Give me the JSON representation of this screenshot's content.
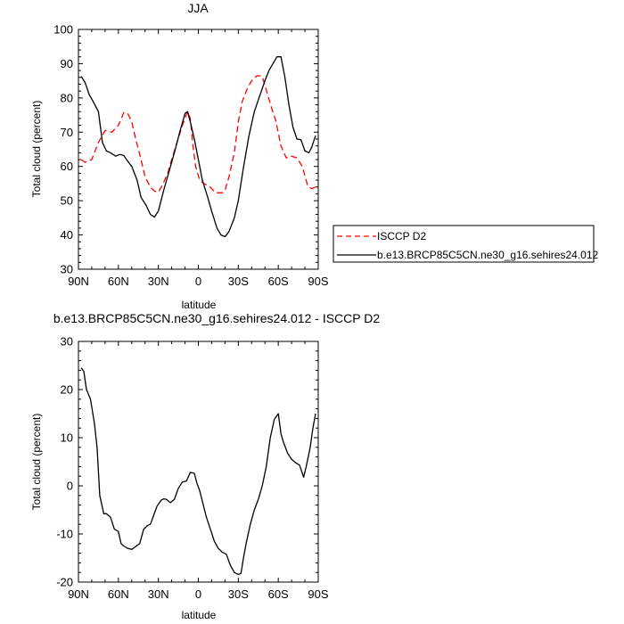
{
  "chart_data": [
    {
      "type": "line",
      "title": "JJA",
      "xlabel": "latitude",
      "ylabel": "Total cloud (percent)",
      "ylim": [
        30,
        100
      ],
      "xlim": [
        -90,
        90
      ],
      "xticks": [
        -90,
        -60,
        -30,
        0,
        30,
        60,
        90
      ],
      "xtick_labels": [
        "90N",
        "60N",
        "30N",
        "0",
        "30S",
        "60S",
        "90S"
      ],
      "yticks": [
        30,
        40,
        50,
        60,
        70,
        80,
        90,
        100
      ],
      "ytick_labels": [
        "30",
        "40",
        "50",
        "60",
        "70",
        "80",
        "90",
        "100"
      ],
      "legend_position": "right",
      "series": [
        {
          "name": "ISCCP D2",
          "color": "#ff0000",
          "dash": true,
          "x": [
            -88,
            -85,
            -80,
            -75,
            -70,
            -65,
            -60,
            -56,
            -53,
            -50,
            -47,
            -43,
            -40,
            -36,
            -33,
            -30,
            -27,
            -23,
            -20,
            -16,
            -12,
            -8,
            -6,
            -4,
            -2,
            1,
            4,
            8,
            13,
            18,
            20,
            23,
            27,
            30,
            33,
            37,
            40,
            44,
            48,
            52,
            55,
            58,
            62,
            66,
            70,
            74,
            78,
            82,
            85,
            88
          ],
          "y": [
            62,
            61.2,
            62,
            67,
            70.5,
            70,
            72,
            75.7,
            75.5,
            73,
            68,
            62,
            57,
            54,
            52.8,
            52.5,
            54.5,
            58,
            62,
            67,
            72,
            76,
            74,
            66,
            60,
            56,
            55,
            54.3,
            52.3,
            52.3,
            53,
            57,
            64,
            73,
            79,
            83,
            85,
            86.5,
            86.3,
            81,
            77,
            73.5,
            66,
            62.5,
            63,
            62.5,
            60,
            54.5,
            53.5,
            54
          ]
        },
        {
          "name": "b.e13.BRCP85C5CN.ne30_g16.sehires24.012",
          "color": "#000000",
          "dash": false,
          "x": [
            -88,
            -85,
            -82,
            -79,
            -75,
            -72,
            -69,
            -66,
            -62,
            -59,
            -56,
            -53,
            -50,
            -46,
            -43,
            -39,
            -36,
            -33,
            -30,
            -26,
            -22,
            -18,
            -14,
            -10,
            -8,
            -6,
            -3,
            0,
            3,
            7,
            10,
            14,
            17,
            20,
            23,
            27,
            30,
            34,
            38,
            42,
            46,
            50,
            53,
            56,
            59,
            62,
            65,
            68,
            71,
            74,
            77,
            80,
            83,
            85,
            88
          ],
          "y": [
            86.3,
            84.5,
            81,
            79,
            76,
            67,
            64.5,
            64,
            63,
            63.5,
            63.2,
            61.5,
            60,
            56,
            51,
            48.5,
            46,
            45.2,
            47,
            53,
            58.5,
            64,
            70,
            75.5,
            76,
            73,
            68,
            62,
            56,
            51,
            47,
            42,
            40,
            39.5,
            41,
            45,
            50,
            60,
            69,
            76,
            80.5,
            85,
            88,
            90,
            92,
            92,
            86,
            78,
            71.5,
            68,
            67.8,
            64.5,
            64,
            65.5,
            69
          ]
        }
      ]
    },
    {
      "type": "line",
      "title": "b.e13.BRCP85C5CN.ne30_g16.sehires24.012 - ISCCP D2",
      "xlabel": "latitude",
      "ylabel": "Total cloud (percent)",
      "ylim": [
        -20,
        30
      ],
      "xlim": [
        -90,
        90
      ],
      "xticks": [
        -90,
        -60,
        -30,
        0,
        30,
        60,
        90
      ],
      "xtick_labels": [
        "90N",
        "60N",
        "30N",
        "0",
        "30S",
        "60S",
        "90S"
      ],
      "yticks": [
        -20,
        -10,
        0,
        10,
        20,
        30
      ],
      "ytick_labels": [
        "-20",
        "-10",
        "0",
        "10",
        "20",
        "30"
      ],
      "series": [
        {
          "color": "#000000",
          "dash": false,
          "x": [
            -88,
            -86,
            -84,
            -81,
            -78,
            -76,
            -74,
            -71,
            -69,
            -66,
            -63,
            -60,
            -58,
            -56,
            -53,
            -50,
            -47,
            -44,
            -41,
            -38,
            -36,
            -34,
            -31,
            -28,
            -26,
            -24,
            -21,
            -18,
            -15,
            -12,
            -9,
            -6,
            -3,
            -1,
            1,
            3,
            6,
            9,
            12,
            15,
            18,
            21,
            24,
            27,
            30,
            32,
            34,
            36,
            39,
            42,
            45,
            48,
            51,
            54,
            57,
            60,
            62,
            64,
            67,
            70,
            73,
            76,
            79,
            81,
            84,
            86,
            88
          ],
          "y": [
            24.5,
            23.8,
            20,
            18,
            13,
            8,
            -2,
            -5.8,
            -5.8,
            -6.5,
            -9,
            -9.5,
            -12,
            -12.5,
            -13,
            -13.2,
            -12.6,
            -12,
            -9,
            -8.2,
            -8,
            -6.5,
            -4.2,
            -3,
            -2.7,
            -2.8,
            -3.5,
            -2.8,
            -0.5,
            0.8,
            1,
            2.8,
            2.6,
            0.5,
            -1,
            -3.2,
            -6.5,
            -9,
            -11.5,
            -13,
            -13.8,
            -14.2,
            -16.5,
            -18,
            -18.4,
            -18.2,
            -14.8,
            -11.8,
            -8,
            -5,
            -2.8,
            0,
            4,
            10,
            13.8,
            15,
            10.8,
            9,
            6.8,
            5.5,
            4.8,
            4.3,
            1.8,
            4,
            8,
            12,
            15
          ]
        }
      ]
    }
  ]
}
